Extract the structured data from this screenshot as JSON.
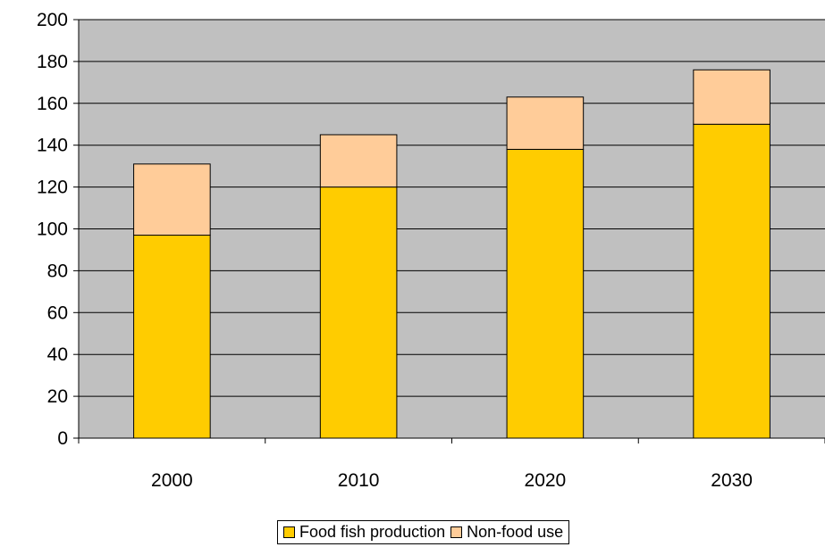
{
  "chart_data": {
    "type": "bar",
    "stacked": true,
    "categories": [
      "2000",
      "2010",
      "2020",
      "2030"
    ],
    "series": [
      {
        "name": "Food fish production",
        "values": [
          97,
          120,
          138,
          150
        ],
        "color": "#ffcc00"
      },
      {
        "name": "Non-food use",
        "values": [
          34,
          25,
          25,
          26
        ],
        "color": "#ffcc99"
      }
    ],
    "ylim": [
      0,
      200
    ],
    "yticks": [
      0,
      20,
      40,
      60,
      80,
      100,
      120,
      140,
      160,
      180,
      200
    ],
    "grid": true,
    "plot_background": "#c0c0c0",
    "legend_position": "bottom"
  }
}
